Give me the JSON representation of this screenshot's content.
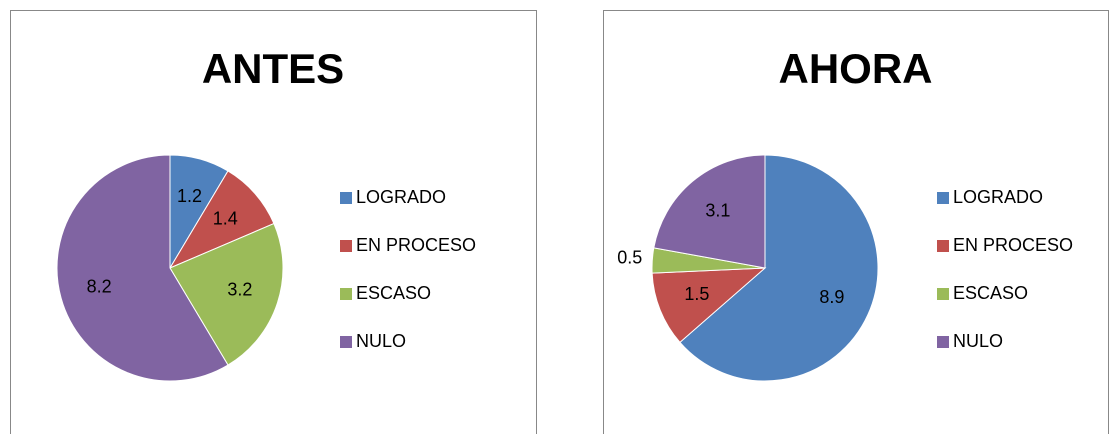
{
  "chart_data": [
    {
      "type": "pie",
      "title": "ANTES",
      "categories": [
        "LOGRADO",
        "EN PROCESO",
        "ESCASO",
        "NULO"
      ],
      "values": [
        1.2,
        1.4,
        3.2,
        8.2
      ],
      "colors": [
        "#4f81bd",
        "#c0504d",
        "#9bbb59",
        "#8064a2"
      ],
      "legend": "right"
    },
    {
      "type": "pie",
      "title": "AHORA",
      "categories": [
        "LOGRADO",
        "EN PROCESO",
        "ESCASO",
        "NULO"
      ],
      "values": [
        8.9,
        1.5,
        0.5,
        3.1
      ],
      "colors": [
        "#4f81bd",
        "#c0504d",
        "#9bbb59",
        "#8064a2"
      ],
      "legend": "right"
    }
  ]
}
